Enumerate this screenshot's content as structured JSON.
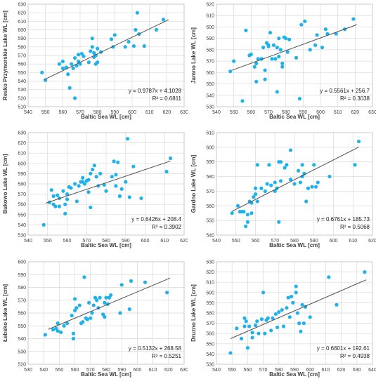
{
  "chart_data": [
    {
      "type": "scatter",
      "xlabel": "Baltic Sea WL [cm]",
      "ylabel": "Resko Przymorskie Lake WL [cm]",
      "xlim": [
        540,
        630
      ],
      "ylim": [
        510,
        630
      ],
      "xticks": [
        540,
        550,
        560,
        570,
        580,
        590,
        600,
        610,
        620,
        630
      ],
      "yticks": [
        510,
        520,
        530,
        540,
        550,
        560,
        570,
        580,
        590,
        600,
        610,
        620,
        630
      ],
      "equation": "y = 0.9787x + 4.1028",
      "r2": "R² = 0.6811",
      "trend": {
        "slope": 0.9787,
        "intercept": 4.1028,
        "x": [
          549,
          621
        ]
      },
      "points": [
        [
          548,
          550
        ],
        [
          550,
          541
        ],
        [
          558,
          560
        ],
        [
          560,
          555
        ],
        [
          560,
          563
        ],
        [
          562,
          556
        ],
        [
          563,
          548
        ],
        [
          564,
          532
        ],
        [
          565,
          560
        ],
        [
          566,
          555
        ],
        [
          567,
          567
        ],
        [
          567,
          520
        ],
        [
          568,
          558
        ],
        [
          569,
          563
        ],
        [
          569,
          571
        ],
        [
          570,
          560
        ],
        [
          571,
          572
        ],
        [
          572,
          569
        ],
        [
          575,
          562
        ],
        [
          576,
          575
        ],
        [
          577,
          590
        ],
        [
          577,
          580
        ],
        [
          578,
          568
        ],
        [
          578,
          573
        ],
        [
          579,
          570
        ],
        [
          579,
          560
        ],
        [
          580,
          578
        ],
        [
          580,
          562
        ],
        [
          582,
          574
        ],
        [
          588,
          589
        ],
        [
          589,
          580
        ],
        [
          590,
          594
        ],
        [
          596,
          580
        ],
        [
          598,
          586
        ],
        [
          601,
          581
        ],
        [
          602,
          600
        ],
        [
          603,
          620
        ],
        [
          604,
          595
        ],
        [
          607,
          581
        ],
        [
          614,
          600
        ],
        [
          618,
          612
        ]
      ]
    },
    {
      "type": "scatter",
      "xlabel": "Baltic Sea WL [cm]",
      "ylabel": "Jamno Lake WL [cm]",
      "xlim": [
        540,
        630
      ],
      "ylim": [
        530,
        620
      ],
      "xticks": [
        540,
        550,
        560,
        570,
        580,
        590,
        600,
        610,
        620,
        630
      ],
      "yticks": [
        530,
        540,
        550,
        560,
        570,
        580,
        590,
        600,
        610,
        620
      ],
      "equation": "y = 0.5561x + 256.7",
      "r2": "R² = 0.3038",
      "trend": {
        "slope": 0.5561,
        "intercept": 256.7,
        "x": [
          549,
          621
        ]
      },
      "points": [
        [
          548,
          561
        ],
        [
          550,
          570
        ],
        [
          555,
          535
        ],
        [
          557,
          597
        ],
        [
          559,
          575
        ],
        [
          560,
          576
        ],
        [
          562,
          565
        ],
        [
          563,
          568
        ],
        [
          563,
          552
        ],
        [
          564,
          572
        ],
        [
          566,
          572
        ],
        [
          567,
          582
        ],
        [
          568,
          562
        ],
        [
          568,
          554
        ],
        [
          569,
          586
        ],
        [
          570,
          584
        ],
        [
          570,
          583
        ],
        [
          571,
          595
        ],
        [
          572,
          572
        ],
        [
          573,
          584
        ],
        [
          574,
          572
        ],
        [
          575,
          582
        ],
        [
          575,
          543
        ],
        [
          576,
          574
        ],
        [
          576,
          590
        ],
        [
          577,
          580
        ],
        [
          578,
          568
        ],
        [
          578,
          565
        ],
        [
          579,
          591
        ],
        [
          580,
          590
        ],
        [
          581,
          578
        ],
        [
          582,
          589
        ],
        [
          586,
          573
        ],
        [
          588,
          537
        ],
        [
          589,
          602
        ],
        [
          591,
          605
        ],
        [
          594,
          580
        ],
        [
          597,
          584
        ],
        [
          598,
          593
        ],
        [
          601,
          582
        ],
        [
          603,
          598
        ],
        [
          604,
          594
        ],
        [
          609,
          594
        ],
        [
          614,
          598
        ],
        [
          619,
          607
        ]
      ]
    },
    {
      "type": "scatter",
      "xlabel": "Baltic Sea WL [cm]",
      "ylabel": "Bukowo Lake WL [cm]",
      "xlim": [
        540,
        620
      ],
      "ylim": [
        530,
        630
      ],
      "xticks": [
        540,
        550,
        560,
        570,
        580,
        590,
        600,
        610,
        620
      ],
      "yticks": [
        530,
        540,
        550,
        560,
        570,
        580,
        590,
        600,
        610,
        620,
        630
      ],
      "equation": "y = 0.6426x + 208.4",
      "r2": "R² = 0.3902",
      "trend": {
        "slope": 0.6426,
        "intercept": 208.4,
        "x": [
          549,
          613
        ]
      },
      "points": [
        [
          548,
          540
        ],
        [
          551,
          562
        ],
        [
          552,
          574
        ],
        [
          553,
          560
        ],
        [
          553,
          568
        ],
        [
          554,
          558
        ],
        [
          555,
          569
        ],
        [
          556,
          558
        ],
        [
          556,
          566
        ],
        [
          558,
          573
        ],
        [
          559,
          560
        ],
        [
          559,
          551
        ],
        [
          560,
          565
        ],
        [
          560,
          570
        ],
        [
          561,
          577
        ],
        [
          562,
          576
        ],
        [
          564,
          580
        ],
        [
          565,
          563
        ],
        [
          566,
          578
        ],
        [
          567,
          582
        ],
        [
          568,
          582
        ],
        [
          568,
          586
        ],
        [
          569,
          580
        ],
        [
          570,
          583
        ],
        [
          571,
          572
        ],
        [
          571,
          584
        ],
        [
          572,
          590
        ],
        [
          572,
          557
        ],
        [
          573,
          594
        ],
        [
          574,
          598
        ],
        [
          575,
          587
        ],
        [
          576,
          578
        ],
        [
          577,
          590
        ],
        [
          579,
          579
        ],
        [
          580,
          573
        ],
        [
          583,
          587
        ],
        [
          584,
          602
        ],
        [
          585,
          589
        ],
        [
          585,
          578
        ],
        [
          586,
          601
        ],
        [
          587,
          568
        ],
        [
          588,
          575
        ],
        [
          590,
          582
        ],
        [
          591,
          624
        ],
        [
          592,
          567
        ],
        [
          594,
          597
        ],
        [
          598,
          566
        ],
        [
          611,
          592
        ],
        [
          613,
          605
        ]
      ]
    },
    {
      "type": "scatter",
      "xlabel": "Baltic Sea WL [cm]",
      "ylabel": "Gardno Lake WL [cm]",
      "xlim": [
        540,
        620
      ],
      "ylim": [
        540,
        610
      ],
      "xticks": [
        540,
        550,
        560,
        570,
        580,
        590,
        600,
        610,
        620
      ],
      "yticks": [
        540,
        550,
        560,
        570,
        580,
        590,
        600,
        610
      ],
      "equation": "y = 0.6761x + 185.73",
      "r2": "R² = 0.5068",
      "trend": {
        "slope": 0.6761,
        "intercept": 185.73,
        "x": [
          548,
          613
        ]
      },
      "points": [
        [
          548,
          555
        ],
        [
          551,
          560
        ],
        [
          552,
          556
        ],
        [
          553,
          556
        ],
        [
          554,
          556
        ],
        [
          555,
          546
        ],
        [
          556,
          549
        ],
        [
          556,
          554
        ],
        [
          557,
          563
        ],
        [
          558,
          555
        ],
        [
          558,
          562
        ],
        [
          559,
          566
        ],
        [
          560,
          568
        ],
        [
          560,
          572
        ],
        [
          561,
          563
        ],
        [
          561,
          588
        ],
        [
          563,
          572
        ],
        [
          565,
          570
        ],
        [
          566,
          575
        ],
        [
          567,
          588
        ],
        [
          568,
          574
        ],
        [
          570,
          570
        ],
        [
          570,
          576
        ],
        [
          571,
          572
        ],
        [
          572,
          549
        ],
        [
          572,
          590
        ],
        [
          573,
          590
        ],
        [
          573,
          577
        ],
        [
          575,
          586
        ],
        [
          576,
          588
        ],
        [
          578,
          598
        ],
        [
          578,
          578
        ],
        [
          580,
          575
        ],
        [
          582,
          584
        ],
        [
          583,
          576
        ],
        [
          584,
          588
        ],
        [
          584,
          580
        ],
        [
          585,
          582
        ],
        [
          586,
          563
        ],
        [
          587,
          572
        ],
        [
          589,
          573
        ],
        [
          590,
          588
        ],
        [
          591,
          573
        ],
        [
          592,
          576
        ],
        [
          598,
          580
        ],
        [
          611,
          588
        ],
        [
          613,
          604
        ]
      ]
    },
    {
      "type": "scatter",
      "xlabel": "Baltic Sea WL [cm]",
      "ylabel": "Łebsko Lake WL [cm]",
      "xlim": [
        530,
        630
      ],
      "ylim": [
        520,
        600
      ],
      "xticks": [
        530,
        540,
        550,
        560,
        570,
        580,
        590,
        600,
        610,
        620,
        630
      ],
      "yticks": [
        520,
        530,
        540,
        550,
        560,
        570,
        580,
        590,
        600
      ],
      "equation": "y = 0.5132x + 268.58",
      "r2": "R² = 0.5251",
      "trend": {
        "slope": 0.5132,
        "intercept": 268.58,
        "x": [
          543,
          621
        ]
      },
      "points": [
        [
          541,
          543
        ],
        [
          546,
          547
        ],
        [
          548,
          548
        ],
        [
          549,
          552
        ],
        [
          549,
          546
        ],
        [
          551,
          545
        ],
        [
          553,
          550
        ],
        [
          555,
          552
        ],
        [
          558,
          558
        ],
        [
          559,
          544
        ],
        [
          559,
          540
        ],
        [
          560,
          562
        ],
        [
          560,
          571
        ],
        [
          561,
          564
        ],
        [
          563,
          566
        ],
        [
          564,
          552
        ],
        [
          565,
          553
        ],
        [
          566,
          588
        ],
        [
          567,
          556
        ],
        [
          568,
          555
        ],
        [
          569,
          568
        ],
        [
          570,
          556
        ],
        [
          571,
          560
        ],
        [
          572,
          566
        ],
        [
          573,
          572
        ],
        [
          574,
          570
        ],
        [
          575,
          564
        ],
        [
          576,
          572
        ],
        [
          578,
          559
        ],
        [
          579,
          557
        ],
        [
          579,
          568
        ],
        [
          580,
          572
        ],
        [
          581,
          567
        ],
        [
          582,
          572
        ],
        [
          583,
          574
        ],
        [
          589,
          560
        ],
        [
          590,
          582
        ],
        [
          595,
          563
        ],
        [
          596,
          585
        ],
        [
          605,
          584
        ],
        [
          619,
          576
        ]
      ]
    },
    {
      "type": "scatter",
      "xlabel": "Baltic Sea WL [cm]",
      "ylabel": "Druzno Lake WL [cm]",
      "xlim": [
        540,
        640
      ],
      "ylim": [
        530,
        630
      ],
      "xticks": [
        540,
        550,
        560,
        570,
        580,
        590,
        600,
        610,
        620,
        630,
        640
      ],
      "yticks": [
        530,
        540,
        550,
        560,
        570,
        580,
        590,
        600,
        610,
        620,
        630
      ],
      "equation": "y = 0.6601x + 192.61",
      "r2": "R² = 0.4938",
      "trend": {
        "slope": 0.6601,
        "intercept": 192.61,
        "x": [
          549,
          636
        ]
      },
      "points": [
        [
          549,
          541
        ],
        [
          553,
          565
        ],
        [
          556,
          555
        ],
        [
          558,
          567
        ],
        [
          558,
          575
        ],
        [
          559,
          572
        ],
        [
          560,
          546
        ],
        [
          561,
          567
        ],
        [
          563,
          556
        ],
        [
          563,
          561
        ],
        [
          565,
          568
        ],
        [
          566,
          572
        ],
        [
          567,
          560
        ],
        [
          569,
          574
        ],
        [
          570,
          600
        ],
        [
          571,
          560
        ],
        [
          572,
          573
        ],
        [
          573,
          575
        ],
        [
          575,
          563
        ],
        [
          576,
          575
        ],
        [
          578,
          579
        ],
        [
          579,
          566
        ],
        [
          580,
          581
        ],
        [
          582,
          583
        ],
        [
          583,
          567
        ],
        [
          585,
          585
        ],
        [
          586,
          595
        ],
        [
          587,
          576
        ],
        [
          588,
          596
        ],
        [
          589,
          590
        ],
        [
          591,
          600
        ],
        [
          591,
          606
        ],
        [
          592,
          580
        ],
        [
          593,
          570
        ],
        [
          594,
          562
        ],
        [
          595,
          588
        ],
        [
          596,
          570
        ],
        [
          597,
          586
        ],
        [
          600,
          576
        ],
        [
          612,
          615
        ],
        [
          617,
          588
        ],
        [
          635,
          620
        ]
      ]
    }
  ]
}
